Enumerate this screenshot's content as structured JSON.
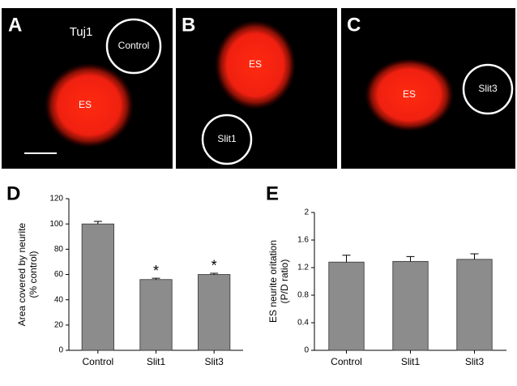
{
  "panels": [
    {
      "letter": "A",
      "labels": [
        "Tuj1",
        "Control",
        "ES"
      ]
    },
    {
      "letter": "B",
      "labels": [
        "ES",
        "Slit1"
      ]
    },
    {
      "letter": "C",
      "labels": [
        "ES",
        "Slit3"
      ]
    }
  ],
  "chart_data": [
    {
      "type": "bar",
      "panel": "D",
      "ylabel": [
        "Area covered by neurite",
        "(% control)"
      ],
      "categories": [
        "Control",
        "Slit1",
        "Slit3"
      ],
      "values": [
        100,
        56,
        60
      ],
      "errors": [
        2,
        1,
        1
      ],
      "significance": [
        null,
        "*",
        "*"
      ],
      "color": "#8c8c8c",
      "ylim": [
        0,
        120
      ],
      "yticks": [
        0,
        20,
        40,
        60,
        80,
        100,
        120
      ]
    },
    {
      "type": "bar",
      "panel": "E",
      "ylabel": [
        "ES neurite oritation",
        "(P/D ratio)"
      ],
      "categories": [
        "Control",
        "Slit1",
        "Slit3"
      ],
      "values": [
        1.28,
        1.29,
        1.32
      ],
      "errors": [
        0.1,
        0.07,
        0.08
      ],
      "color": "#8c8c8c",
      "ylim": [
        0,
        2
      ],
      "yticks": [
        0,
        0.4,
        0.8,
        1.2,
        1.6,
        2
      ]
    }
  ]
}
